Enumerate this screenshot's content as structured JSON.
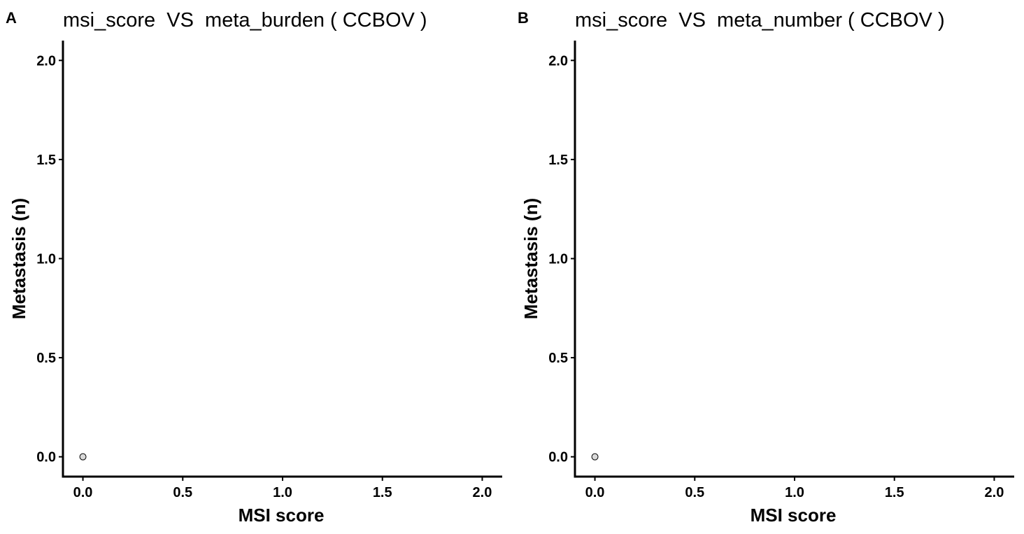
{
  "chart_data": [
    {
      "type": "scatter",
      "panel": "A",
      "title": "msi_score  VS  meta_burden ( CCBOV )",
      "xlabel": "MSI score",
      "ylabel": "Metastasis (n)",
      "xlim": [
        -0.1,
        2.1
      ],
      "ylim": [
        -0.1,
        2.1
      ],
      "xticks": [
        "0.0",
        "0.5",
        "1.0",
        "1.5",
        "2.0"
      ],
      "yticks": [
        "0.0",
        "0.5",
        "1.0",
        "1.5",
        "2.0"
      ],
      "points": [
        {
          "x": 0.0,
          "y": 0.0
        }
      ],
      "grid": false,
      "point_fill": "#d9d9d9",
      "point_stroke": "#000000"
    },
    {
      "type": "scatter",
      "panel": "B",
      "title": "msi_score  VS  meta_number ( CCBOV )",
      "xlabel": "MSI score",
      "ylabel": "Metastasis (n)",
      "xlim": [
        -0.1,
        2.1
      ],
      "ylim": [
        -0.1,
        2.1
      ],
      "xticks": [
        "0.0",
        "0.5",
        "1.0",
        "1.5",
        "2.0"
      ],
      "yticks": [
        "0.0",
        "0.5",
        "1.0",
        "1.5",
        "2.0"
      ],
      "points": [
        {
          "x": 0.0,
          "y": 0.0
        }
      ],
      "grid": false,
      "point_fill": "#d9d9d9",
      "point_stroke": "#000000"
    }
  ]
}
